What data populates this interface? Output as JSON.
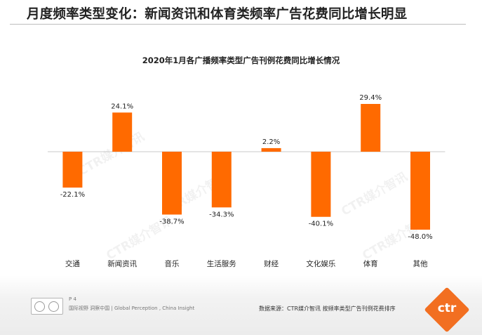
{
  "slide": {
    "title": "月度频率类型变化：新闻资讯和体育类频率广告花费同比增长明显"
  },
  "chart_data": {
    "type": "bar",
    "title": "2020年1月各广播频率类型广告刊例花费同比增长情况",
    "xlabel": "",
    "ylabel": "",
    "categories": [
      "交通",
      "新闻资讯",
      "音乐",
      "生活服务",
      "财经",
      "文化娱乐",
      "体育",
      "其他"
    ],
    "values": [
      -22.1,
      24.1,
      -38.7,
      -34.3,
      2.2,
      -40.1,
      29.4,
      -48.0
    ],
    "value_labels": [
      "-22.1%",
      "24.1%",
      "-38.7%",
      "-34.3%",
      "2.2%",
      "-40.1%",
      "29.4%",
      "-48.0%"
    ],
    "ylim": [
      -48.0,
      29.4
    ],
    "grid": false,
    "legend": "none",
    "bar_color": "#ff6a00"
  },
  "footer": {
    "page_number": "P 4",
    "left_text": "国际视野  洞察中国 | Global Perception , China Insight",
    "source_text": "数据来源：CTR媒介智讯  按频率类型广告刊例花费排序",
    "brand": "ctr",
    "brand_color": "#f26f21",
    "watermark": "CTR媒介智讯"
  }
}
